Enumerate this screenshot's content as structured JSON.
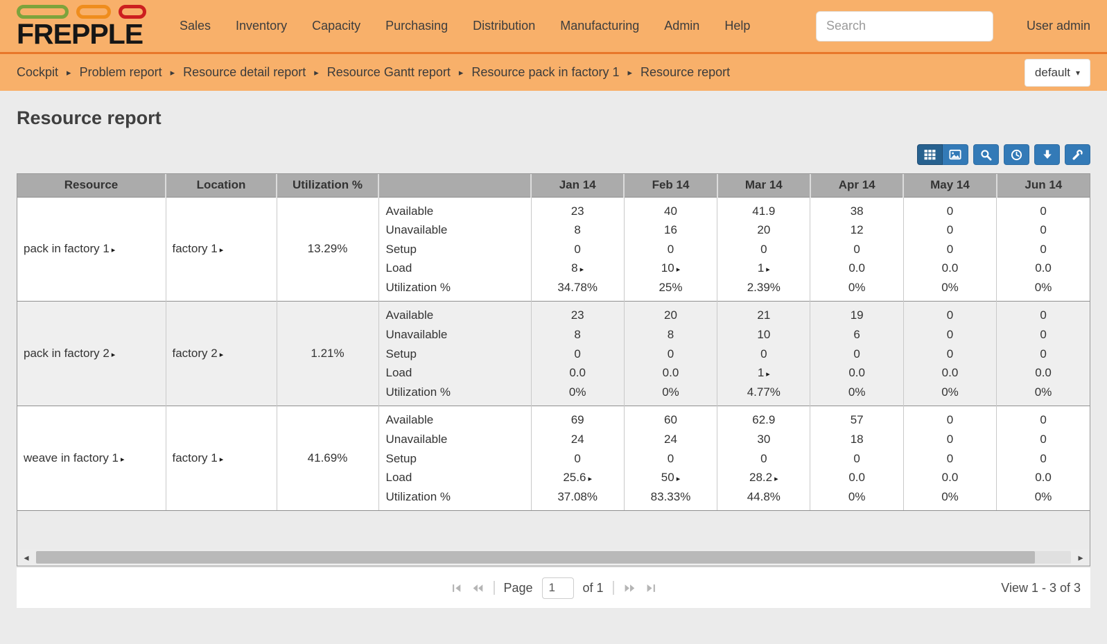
{
  "navbar": {
    "brand": "FREPPLE",
    "menu_items": [
      "Sales",
      "Inventory",
      "Capacity",
      "Purchasing",
      "Distribution",
      "Manufacturing",
      "Admin",
      "Help"
    ],
    "search_placeholder": "Search",
    "user": "User admin"
  },
  "breadcrumb": {
    "items": [
      "Cockpit",
      "Problem report",
      "Resource detail report",
      "Resource Gantt report",
      "Resource pack in factory 1",
      "Resource report"
    ],
    "view_selector": "default"
  },
  "page": {
    "title": "Resource report"
  },
  "toolbar": {
    "buttons": [
      "table-view",
      "graph-view",
      "search",
      "time-buckets",
      "download",
      "customize"
    ]
  },
  "table": {
    "columns": [
      "Resource",
      "Location",
      "Utilization %",
      "",
      "Jan 14",
      "Feb 14",
      "Mar 14",
      "Apr 14",
      "May 14",
      "Jun 14"
    ],
    "metric_labels": [
      "Available",
      "Unavailable",
      "Setup",
      "Load",
      "Utilization %"
    ],
    "rows": [
      {
        "resource": "pack in factory 1",
        "location": "factory 1",
        "utilization": "13.29%",
        "months": [
          [
            {
              "v": "23"
            },
            {
              "v": "8"
            },
            {
              "v": "0"
            },
            {
              "v": "8",
              "a": true
            },
            {
              "v": "34.78%"
            }
          ],
          [
            {
              "v": "40"
            },
            {
              "v": "16"
            },
            {
              "v": "0"
            },
            {
              "v": "10",
              "a": true
            },
            {
              "v": "25%"
            }
          ],
          [
            {
              "v": "41.9"
            },
            {
              "v": "20"
            },
            {
              "v": "0"
            },
            {
              "v": "1",
              "a": true
            },
            {
              "v": "2.39%"
            }
          ],
          [
            {
              "v": "38"
            },
            {
              "v": "12"
            },
            {
              "v": "0"
            },
            {
              "v": "0.0"
            },
            {
              "v": "0%"
            }
          ],
          [
            {
              "v": "0"
            },
            {
              "v": "0"
            },
            {
              "v": "0"
            },
            {
              "v": "0.0"
            },
            {
              "v": "0%"
            }
          ],
          [
            {
              "v": "0"
            },
            {
              "v": "0"
            },
            {
              "v": "0"
            },
            {
              "v": "0.0"
            },
            {
              "v": "0%"
            }
          ]
        ]
      },
      {
        "resource": "pack in factory 2",
        "location": "factory 2",
        "utilization": "1.21%",
        "months": [
          [
            {
              "v": "23"
            },
            {
              "v": "8"
            },
            {
              "v": "0"
            },
            {
              "v": "0.0"
            },
            {
              "v": "0%"
            }
          ],
          [
            {
              "v": "20"
            },
            {
              "v": "8"
            },
            {
              "v": "0"
            },
            {
              "v": "0.0"
            },
            {
              "v": "0%"
            }
          ],
          [
            {
              "v": "21"
            },
            {
              "v": "10"
            },
            {
              "v": "0"
            },
            {
              "v": "1",
              "a": true
            },
            {
              "v": "4.77%"
            }
          ],
          [
            {
              "v": "19"
            },
            {
              "v": "6"
            },
            {
              "v": "0"
            },
            {
              "v": "0.0"
            },
            {
              "v": "0%"
            }
          ],
          [
            {
              "v": "0"
            },
            {
              "v": "0"
            },
            {
              "v": "0"
            },
            {
              "v": "0.0"
            },
            {
              "v": "0%"
            }
          ],
          [
            {
              "v": "0"
            },
            {
              "v": "0"
            },
            {
              "v": "0"
            },
            {
              "v": "0.0"
            },
            {
              "v": "0%"
            }
          ]
        ]
      },
      {
        "resource": "weave in factory 1",
        "location": "factory 1",
        "utilization": "41.69%",
        "months": [
          [
            {
              "v": "69"
            },
            {
              "v": "24"
            },
            {
              "v": "0"
            },
            {
              "v": "25.6",
              "a": true
            },
            {
              "v": "37.08%"
            }
          ],
          [
            {
              "v": "60"
            },
            {
              "v": "24"
            },
            {
              "v": "0"
            },
            {
              "v": "50",
              "a": true
            },
            {
              "v": "83.33%"
            }
          ],
          [
            {
              "v": "62.9"
            },
            {
              "v": "30"
            },
            {
              "v": "0"
            },
            {
              "v": "28.2",
              "a": true
            },
            {
              "v": "44.8%"
            }
          ],
          [
            {
              "v": "57"
            },
            {
              "v": "18"
            },
            {
              "v": "0"
            },
            {
              "v": "0.0"
            },
            {
              "v": "0%"
            }
          ],
          [
            {
              "v": "0"
            },
            {
              "v": "0"
            },
            {
              "v": "0"
            },
            {
              "v": "0.0"
            },
            {
              "v": "0%"
            }
          ],
          [
            {
              "v": "0"
            },
            {
              "v": "0"
            },
            {
              "v": "0"
            },
            {
              "v": "0.0"
            },
            {
              "v": "0%"
            }
          ]
        ]
      }
    ]
  },
  "pager": {
    "page_label": "Page",
    "page_value": "1",
    "of_label": "of 1",
    "view_info": "View 1 - 3 of 3"
  },
  "icons": {
    "drilldown": "▸",
    "breadcrumb_sep": "▸",
    "caret_down": "▾",
    "scroll_left": "◂",
    "scroll_right": "▸"
  },
  "colors": {
    "navbar_bg": "#f8b06a",
    "navbar_divider": "#e8772a",
    "button_blue": "#337ab7",
    "button_blue_active": "#27618f",
    "header_gray": "#ababab",
    "logo_pills": [
      "#7da33c",
      "#ef8d1d",
      "#cc1f1f"
    ]
  }
}
